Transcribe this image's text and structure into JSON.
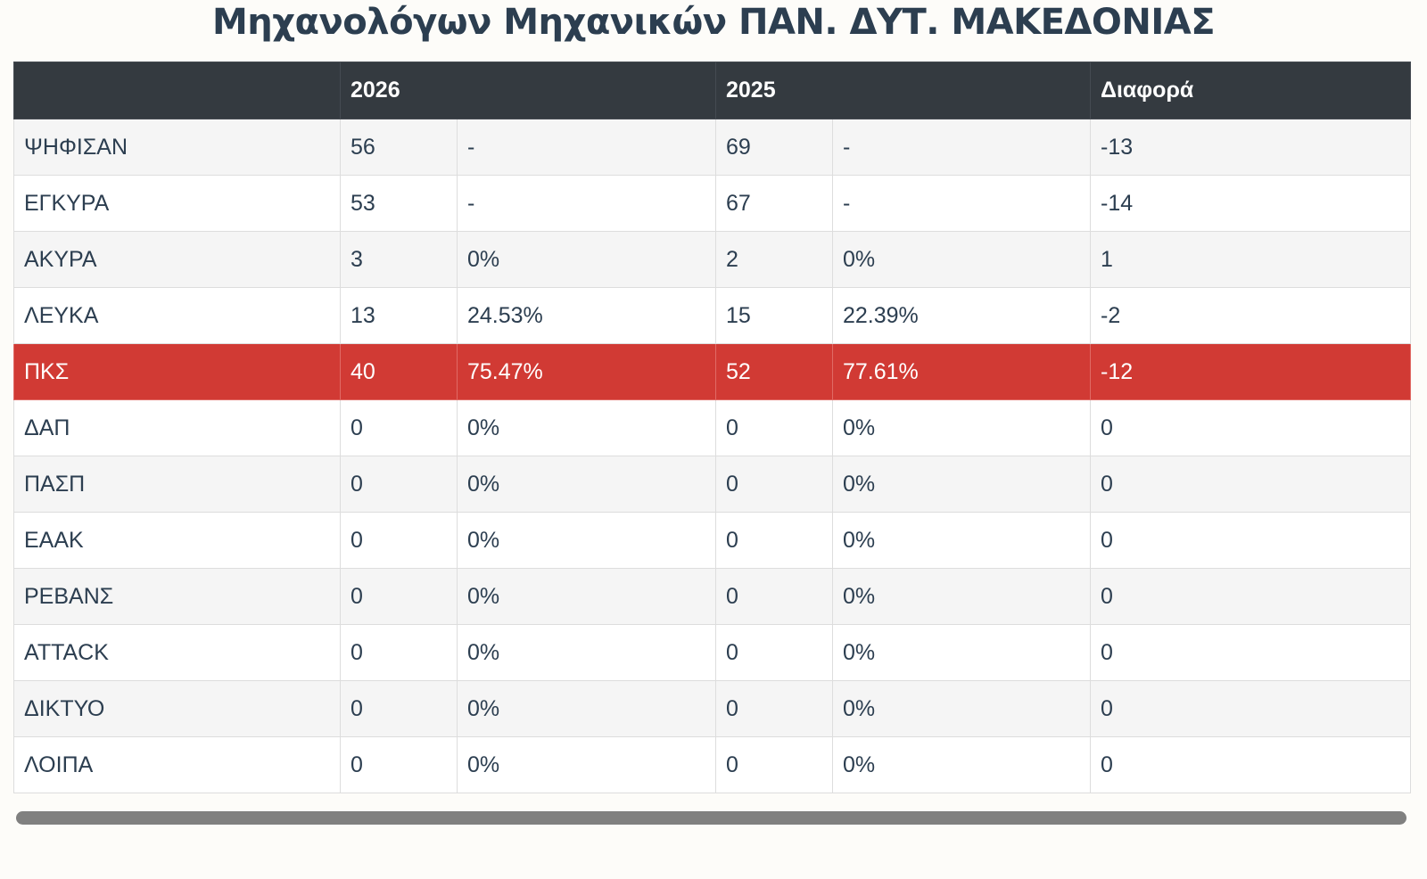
{
  "header": {
    "title": "Μηχανολόγων Μηχανικών ΠΑΝ. ΔΥΤ. ΜΑΚΕΔΟΝΙΑΣ"
  },
  "table": {
    "columns": [
      "2026",
      "2025",
      "Διαφορά"
    ],
    "rows": [
      [
        "ΨΗΦΙΣΑΝ",
        "56",
        "-",
        "69",
        "-",
        "-13"
      ],
      [
        "ΕΓΚΥΡΑ",
        "53",
        "-",
        "67",
        "-",
        "-14"
      ],
      [
        "ΑΚΥΡΑ",
        "3",
        "0%",
        "2",
        "0%",
        "1"
      ],
      [
        "ΛΕΥΚΑ",
        "13",
        "24.53%",
        "15",
        "22.39%",
        "-2"
      ],
      [
        "ΠΚΣ",
        "40",
        "75.47%",
        "52",
        "77.61%",
        "-12"
      ],
      [
        "ΔΑΠ",
        "0",
        "0%",
        "0",
        "0%",
        "0"
      ],
      [
        "ΠΑΣΠ",
        "0",
        "0%",
        "0",
        "0%",
        "0"
      ],
      [
        "ΕΑΑΚ",
        "0",
        "0%",
        "0",
        "0%",
        "0"
      ],
      [
        "ΡΕΒΑΝΣ",
        "0",
        "0%",
        "0",
        "0%",
        "0"
      ],
      [
        "ATTACK",
        "0",
        "0%",
        "0",
        "0%",
        "0"
      ],
      [
        "ΔΙΚΤΥΟ",
        "0",
        "0%",
        "0",
        "0%",
        "0"
      ],
      [
        "ΛΟΙΠΑ",
        "0",
        "0%",
        "0",
        "0%",
        "0"
      ]
    ]
  }
}
